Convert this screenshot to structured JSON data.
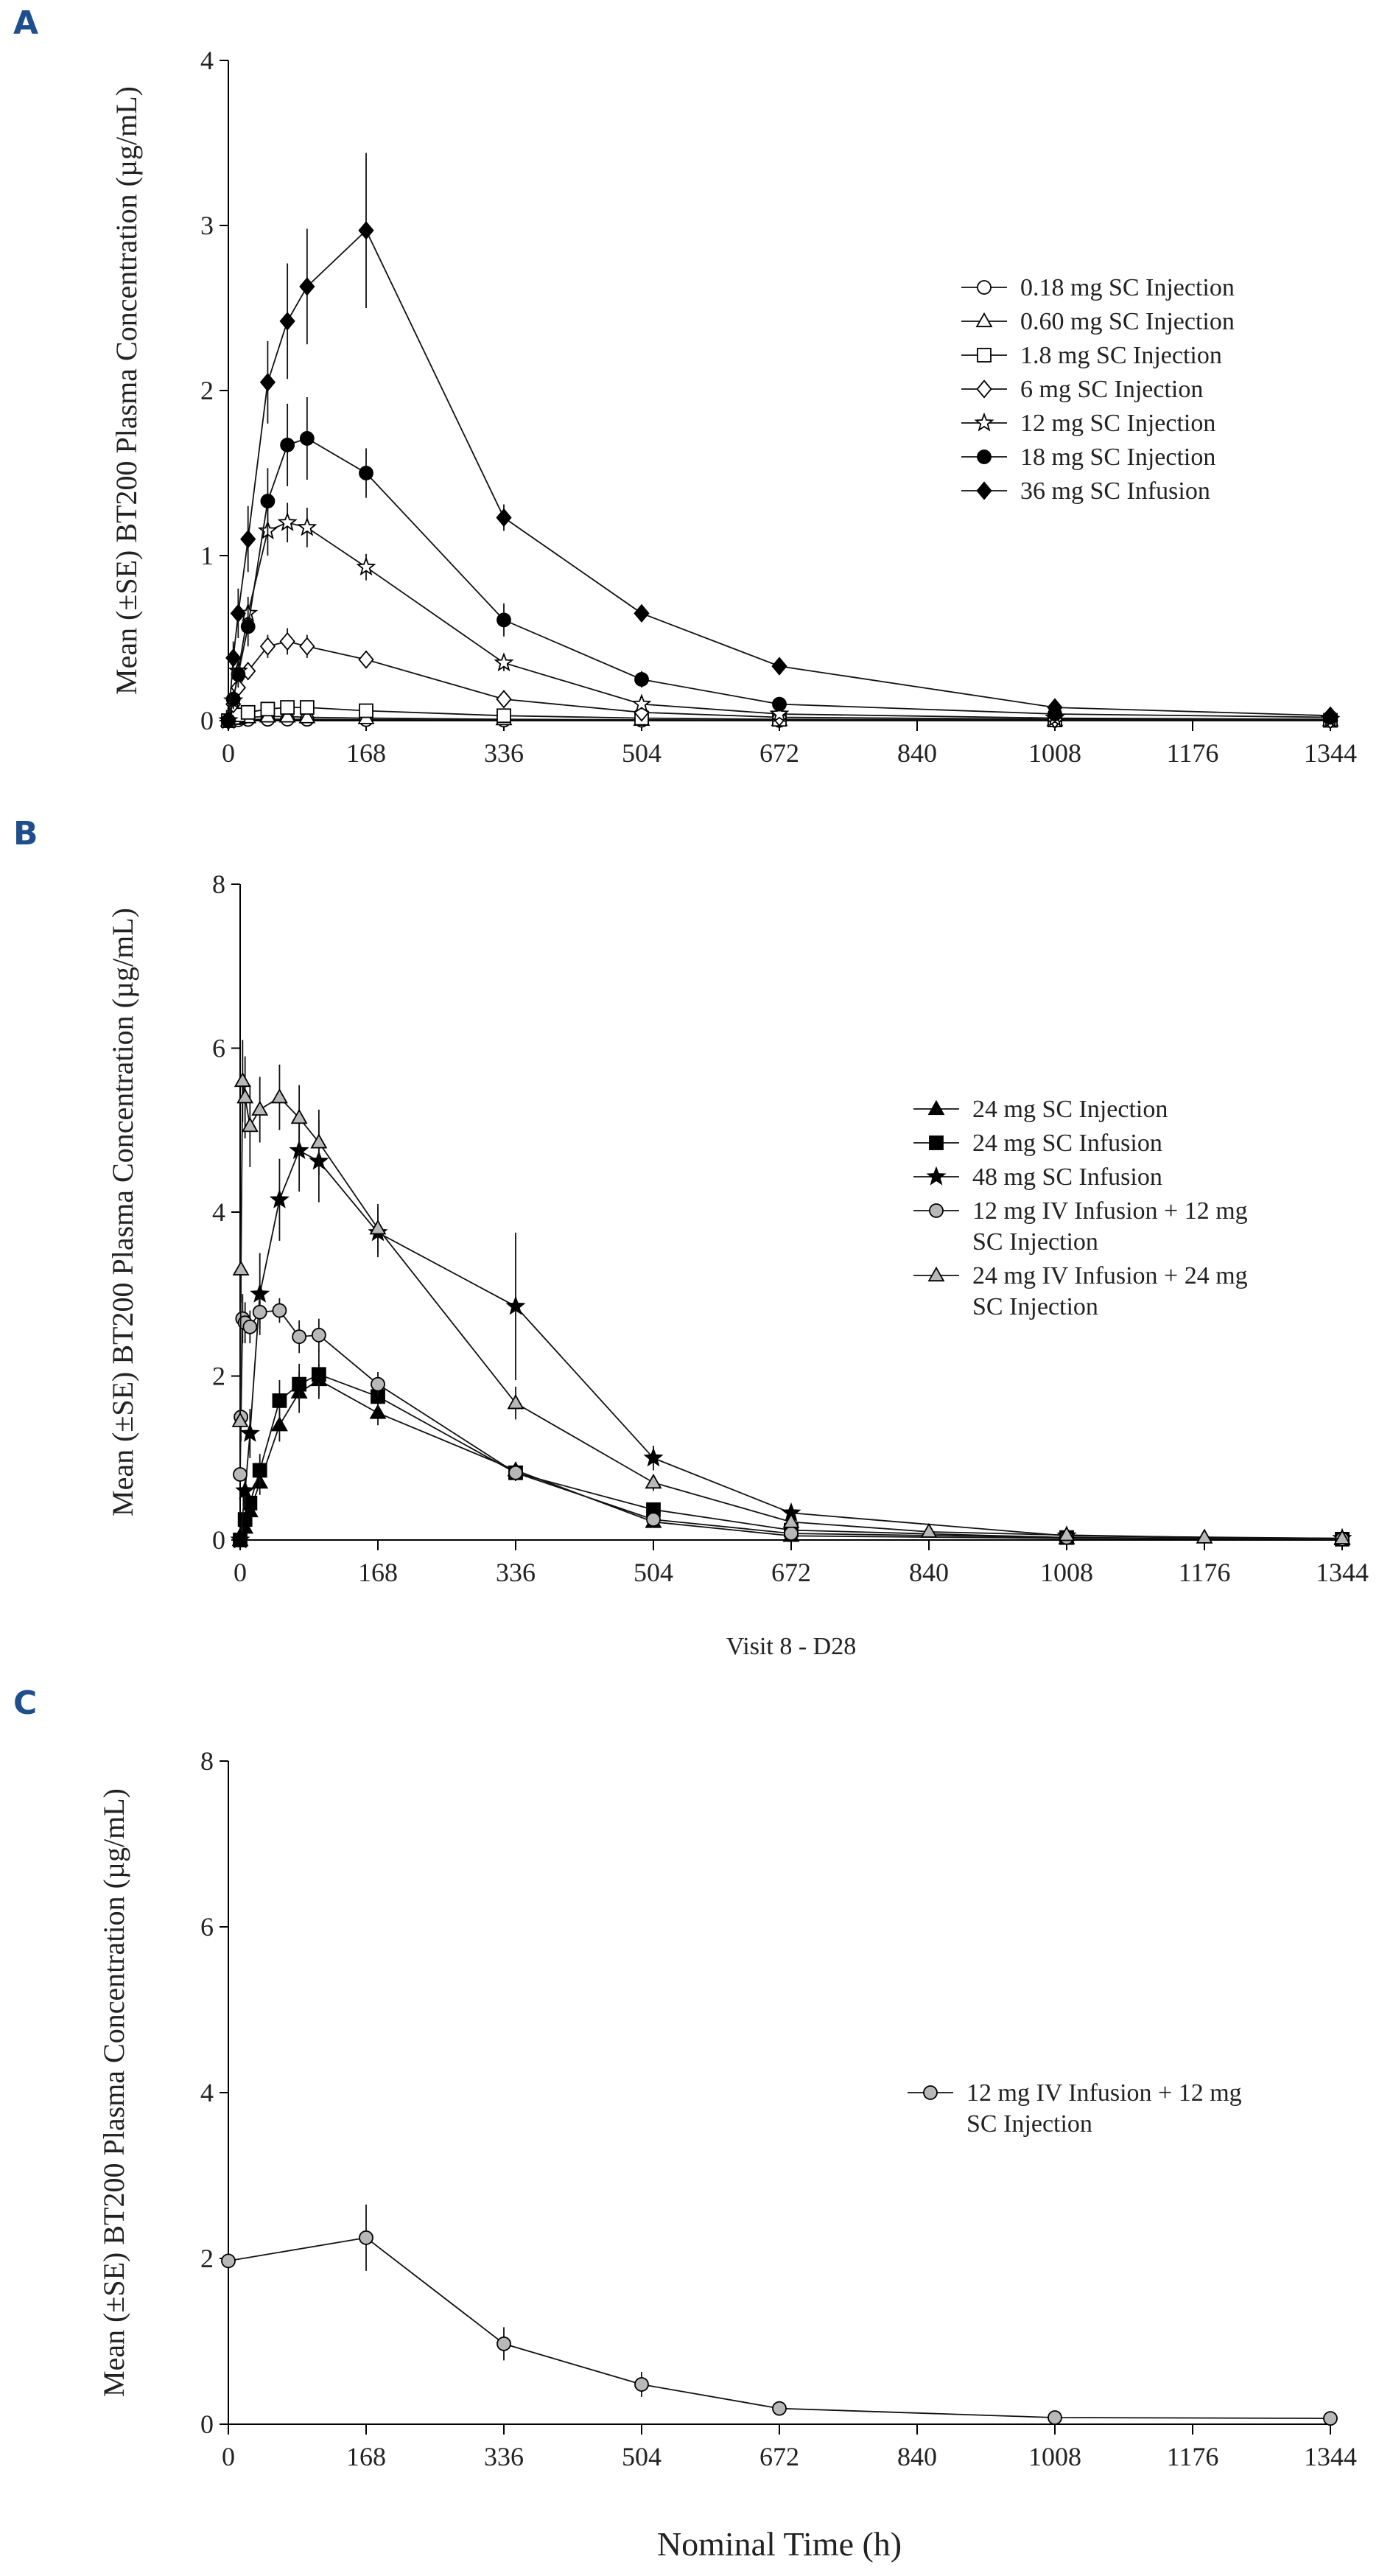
{
  "chart_data": [
    {
      "panel": "A",
      "type": "line",
      "ylabel": "Mean (±SE) BT200 Plasma Concentration (µg/mL)",
      "xlabel": "",
      "xlim": [
        0,
        1344
      ],
      "ylim": [
        0,
        4
      ],
      "xticks": [
        "0",
        "168",
        "336",
        "504",
        "672",
        "840",
        "1008",
        "1176",
        "1344"
      ],
      "yticks": [
        "0",
        "1",
        "2",
        "3",
        "4"
      ],
      "legend_position": "right",
      "series": [
        {
          "name": "0.18 mg SC Injection",
          "marker": "circle",
          "fill": "white",
          "x": [
            0,
            6,
            12,
            24,
            48,
            72,
            96,
            168,
            336,
            504,
            672,
            1008,
            1344
          ],
          "y": [
            0,
            0.003,
            0.005,
            0.007,
            0.008,
            0.009,
            0.008,
            0.006,
            0.003,
            0.002,
            0.001,
            0.001,
            0.001
          ],
          "err": [
            0,
            0,
            0,
            0,
            0,
            0,
            0,
            0,
            0,
            0,
            0,
            0,
            0
          ]
        },
        {
          "name": "0.60 mg SC Injection",
          "marker": "triangle",
          "fill": "white",
          "x": [
            0,
            6,
            12,
            24,
            48,
            72,
            96,
            168,
            336,
            504,
            672,
            1008,
            1344
          ],
          "y": [
            0,
            0.01,
            0.015,
            0.02,
            0.025,
            0.025,
            0.02,
            0.015,
            0.008,
            0.005,
            0.003,
            0.002,
            0.001
          ],
          "err": [
            0,
            0,
            0,
            0,
            0,
            0,
            0,
            0,
            0,
            0,
            0,
            0,
            0
          ]
        },
        {
          "name": "1.8 mg SC Injection",
          "marker": "square",
          "fill": "white",
          "x": [
            0,
            6,
            12,
            24,
            48,
            72,
            96,
            168,
            336,
            504,
            672,
            1008,
            1344
          ],
          "y": [
            0,
            0.02,
            0.035,
            0.05,
            0.07,
            0.08,
            0.08,
            0.06,
            0.03,
            0.015,
            0.008,
            0.004,
            0.002
          ],
          "err": [
            0,
            0.005,
            0.01,
            0.01,
            0.02,
            0.02,
            0.02,
            0.02,
            0.01,
            0.005,
            0,
            0,
            0
          ]
        },
        {
          "name": "6 mg SC Injection",
          "marker": "diamond",
          "fill": "white",
          "x": [
            0,
            6,
            12,
            24,
            48,
            72,
            96,
            168,
            336,
            504,
            672,
            1008,
            1344
          ],
          "y": [
            0,
            0.1,
            0.2,
            0.3,
            0.45,
            0.48,
            0.45,
            0.37,
            0.13,
            0.05,
            0.02,
            0.008,
            0.004
          ],
          "err": [
            0,
            0.03,
            0.04,
            0.05,
            0.07,
            0.08,
            0.07,
            0.05,
            0.03,
            0.02,
            0.01,
            0,
            0
          ]
        },
        {
          "name": "12 mg SC Injection",
          "marker": "star",
          "fill": "white",
          "x": [
            0,
            6,
            12,
            24,
            48,
            72,
            96,
            168,
            336,
            504,
            672,
            1008,
            1344
          ],
          "y": [
            0,
            0.12,
            0.3,
            0.65,
            1.15,
            1.2,
            1.17,
            0.93,
            0.35,
            0.1,
            0.04,
            0.015,
            0.008
          ],
          "err": [
            0,
            0.05,
            0.08,
            0.1,
            0.15,
            0.12,
            0.12,
            0.08,
            0.05,
            0.03,
            0.02,
            0,
            0
          ]
        },
        {
          "name": "18 mg SC Injection",
          "marker": "circle",
          "fill": "black",
          "x": [
            0,
            6,
            12,
            24,
            48,
            72,
            96,
            168,
            336,
            504,
            672,
            1008,
            1344
          ],
          "y": [
            0,
            0.13,
            0.28,
            0.57,
            1.33,
            1.67,
            1.71,
            1.5,
            0.61,
            0.25,
            0.1,
            0.04,
            0.02
          ],
          "err": [
            0,
            0.05,
            0.08,
            0.12,
            0.2,
            0.25,
            0.25,
            0.15,
            0.1,
            0.05,
            0.03,
            0.01,
            0
          ]
        },
        {
          "name": "36 mg SC Infusion",
          "marker": "diamond",
          "fill": "black",
          "x": [
            0,
            6,
            12,
            24,
            48,
            72,
            96,
            168,
            336,
            504,
            672,
            1008,
            1344
          ],
          "y": [
            0,
            0.38,
            0.65,
            1.1,
            2.05,
            2.42,
            2.63,
            2.97,
            1.23,
            0.65,
            0.33,
            0.08,
            0.03
          ],
          "err": [
            0,
            0.1,
            0.15,
            0.2,
            0.25,
            0.35,
            0.35,
            0.47,
            0.08,
            0.05,
            0.03,
            0.02,
            0.01
          ]
        }
      ]
    },
    {
      "panel": "B",
      "type": "line",
      "ylabel": "Mean (±SE) BT200 Plasma Concentration (µg/mL)",
      "xlabel": "Visit 8 - D28",
      "xlim": [
        0,
        1344
      ],
      "ylim": [
        0,
        8
      ],
      "xticks": [
        "0",
        "168",
        "336",
        "504",
        "672",
        "840",
        "1008",
        "1176",
        "1344"
      ],
      "yticks": [
        "0",
        "2",
        "4",
        "6",
        "8"
      ],
      "legend_position": "right",
      "series": [
        {
          "name": "24 mg SC Injection",
          "marker": "triangle",
          "fill": "black",
          "x": [
            0,
            6,
            12,
            24,
            48,
            72,
            96,
            168,
            336,
            504,
            672,
            1008,
            1344
          ],
          "y": [
            0,
            0.15,
            0.35,
            0.7,
            1.4,
            1.8,
            1.95,
            1.55,
            0.85,
            0.22,
            0.05,
            0.02,
            0.01
          ],
          "err": [
            0,
            0.05,
            0.1,
            0.15,
            0.2,
            0.25,
            0.2,
            0.15,
            0.1,
            0.05,
            0.02,
            0,
            0
          ]
        },
        {
          "name": "24 mg SC Infusion",
          "marker": "square",
          "fill": "black",
          "x": [
            0,
            6,
            12,
            24,
            48,
            72,
            96,
            168,
            336,
            504,
            672,
            1008,
            1344
          ],
          "y": [
            0,
            0.25,
            0.45,
            0.85,
            1.7,
            1.9,
            2.02,
            1.75,
            0.82,
            0.37,
            0.12,
            0.03,
            0.01
          ],
          "err": [
            0,
            0.05,
            0.1,
            0.2,
            0.25,
            0.25,
            0.3,
            0.15,
            0.1,
            0.05,
            0.03,
            0,
            0
          ]
        },
        {
          "name": "48 mg SC Infusion",
          "marker": "star",
          "fill": "black",
          "x": [
            0,
            6,
            12,
            24,
            48,
            72,
            96,
            168,
            336,
            504,
            672,
            1008,
            1344
          ],
          "y": [
            0,
            0.6,
            1.3,
            3.0,
            4.15,
            4.75,
            4.62,
            3.75,
            2.85,
            1.0,
            0.33,
            0.05,
            0.02
          ],
          "err": [
            0,
            0.2,
            0.3,
            0.5,
            0.5,
            0.5,
            0.5,
            0.3,
            0.9,
            0.15,
            0.05,
            0.02,
            0
          ]
        },
        {
          "name": "12 mg IV Infusion + 12 mg SC Injection",
          "marker": "circle",
          "fill": "gray",
          "x": [
            0,
            1,
            3,
            6,
            12,
            24,
            48,
            72,
            96,
            168,
            336,
            504,
            672,
            1008,
            1344
          ],
          "y": [
            0.8,
            1.5,
            2.7,
            2.65,
            2.6,
            2.78,
            2.8,
            2.48,
            2.5,
            1.9,
            0.82,
            0.25,
            0.08,
            0.03,
            0.01
          ],
          "err": [
            0.1,
            0.3,
            0.3,
            0.25,
            0.2,
            0.2,
            0.15,
            0.2,
            0.2,
            0.15,
            0.1,
            0.05,
            0.02,
            0,
            0
          ]
        },
        {
          "name": "24 mg IV Infusion + 24 mg SC Injection",
          "marker": "triangle",
          "fill": "gray",
          "x": [
            0,
            1,
            3,
            6,
            12,
            24,
            48,
            72,
            96,
            168,
            336,
            504,
            672,
            840,
            1008,
            1176,
            1344
          ],
          "y": [
            1.45,
            3.3,
            5.6,
            5.4,
            5.05,
            5.25,
            5.4,
            5.15,
            4.85,
            3.8,
            1.67,
            0.7,
            0.22,
            0.1,
            0.06,
            0.03,
            0.02
          ],
          "err": [
            0.2,
            0.4,
            0.5,
            0.5,
            0.5,
            0.4,
            0.4,
            0.4,
            0.4,
            0.3,
            0.2,
            0.1,
            0.05,
            0.02,
            0.01,
            0,
            0
          ]
        }
      ]
    },
    {
      "panel": "C",
      "type": "line",
      "ylabel": "Mean (±SE) BT200 Plasma Concentration (µg/mL)",
      "xlabel": "Nominal Time (h)",
      "xlim": [
        0,
        1344
      ],
      "ylim": [
        0,
        8
      ],
      "xticks": [
        "0",
        "168",
        "336",
        "504",
        "672",
        "840",
        "1008",
        "1176",
        "1344"
      ],
      "yticks": [
        "0",
        "2",
        "4",
        "6",
        "8"
      ],
      "legend_position": "right",
      "series": [
        {
          "name": "12 mg IV Infusion + 12 mg SC Injection",
          "marker": "circle",
          "fill": "gray",
          "x": [
            0,
            168,
            336,
            504,
            672,
            1008,
            1344
          ],
          "y": [
            1.97,
            2.25,
            0.97,
            0.48,
            0.19,
            0.08,
            0.07
          ],
          "err": [
            0.05,
            0.4,
            0.2,
            0.15,
            0.03,
            0.02,
            0.02
          ]
        }
      ]
    }
  ],
  "panels": [
    {
      "letter": "A"
    },
    {
      "letter": "B"
    },
    {
      "letter": "C"
    }
  ]
}
